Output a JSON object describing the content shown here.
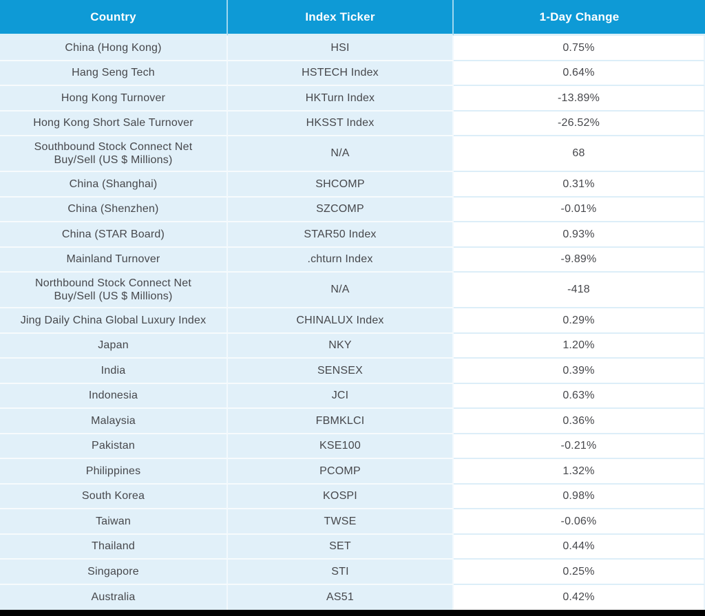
{
  "chart_data": {
    "type": "table",
    "columns": [
      "Country",
      "Index Ticker",
      "1-Day Change"
    ],
    "rows": [
      {
        "country": "China (Hong Kong)",
        "ticker": "HSI",
        "change": "0.75%"
      },
      {
        "country": "Hang Seng Tech",
        "ticker": "HSTECH Index",
        "change": "0.64%"
      },
      {
        "country": "Hong Kong Turnover",
        "ticker": "HKTurn Index",
        "change": "-13.89%"
      },
      {
        "country": "Hong Kong Short Sale Turnover",
        "ticker": "HKSST Index",
        "change": "-26.52%"
      },
      {
        "country": "Southbound Stock Connect Net\nBuy/Sell (US $ Millions)",
        "ticker": "N/A",
        "change": "68"
      },
      {
        "country": "China (Shanghai)",
        "ticker": "SHCOMP",
        "change": "0.31%"
      },
      {
        "country": "China (Shenzhen)",
        "ticker": "SZCOMP",
        "change": "-0.01%"
      },
      {
        "country": "China (STAR Board)",
        "ticker": "STAR50 Index",
        "change": "0.93%"
      },
      {
        "country": "Mainland Turnover",
        "ticker": ".chturn Index",
        "change": "-9.89%"
      },
      {
        "country": "Northbound Stock Connect Net\nBuy/Sell (US $ Millions)",
        "ticker": "N/A",
        "change": "-418"
      },
      {
        "country": "Jing Daily China Global Luxury Index",
        "ticker": "CHINALUX Index",
        "change": "0.29%"
      },
      {
        "country": "Japan",
        "ticker": "NKY",
        "change": "1.20%"
      },
      {
        "country": "India",
        "ticker": "SENSEX",
        "change": "0.39%"
      },
      {
        "country": "Indonesia",
        "ticker": "JCI",
        "change": "0.63%"
      },
      {
        "country": "Malaysia",
        "ticker": "FBMKLCI",
        "change": "0.36%"
      },
      {
        "country": "Pakistan",
        "ticker": "KSE100",
        "change": "-0.21%"
      },
      {
        "country": "Philippines",
        "ticker": "PCOMP",
        "change": "1.32%"
      },
      {
        "country": "South Korea",
        "ticker": "KOSPI",
        "change": "0.98%"
      },
      {
        "country": "Taiwan",
        "ticker": "TWSE",
        "change": "-0.06%"
      },
      {
        "country": "Thailand",
        "ticker": "SET",
        "change": "0.44%"
      },
      {
        "country": "Singapore",
        "ticker": "STI",
        "change": "0.25%"
      },
      {
        "country": "Australia",
        "ticker": "AS51",
        "change": "0.42%"
      }
    ]
  },
  "colors": {
    "header_bg": "#0e9ad6",
    "header_text": "#ffffff",
    "row_bg_light_blue": "#e1f0f9",
    "change_column_bg": "#ffffff",
    "body_text": "#46474b",
    "row_divider_on_white": "#dceef8",
    "bottom_bar": "#000000"
  }
}
